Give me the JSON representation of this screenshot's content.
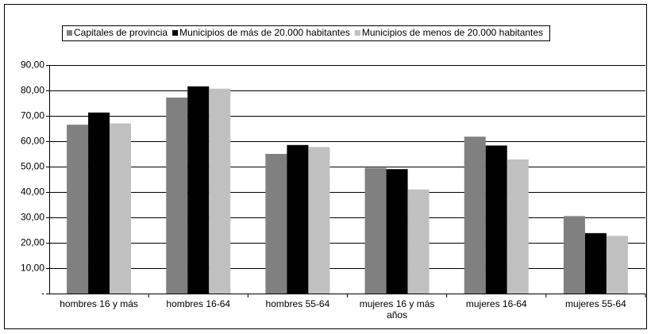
{
  "chart_data": {
    "type": "bar",
    "categories": [
      "hombres 16 y más",
      "hombres 16-64",
      "hombres 55-64",
      "mujeres 16 y más años",
      "mujeres 16-64",
      "mujeres 55-64"
    ],
    "series": [
      {
        "name": "Capitales de provincia",
        "color": "#808080",
        "values": [
          66.5,
          77.2,
          55.0,
          49.5,
          61.8,
          30.5
        ]
      },
      {
        "name": "Municipios de más de 20.000 habitantes",
        "color": "#000000",
        "values": [
          71.3,
          81.6,
          58.5,
          49.0,
          58.3,
          23.8
        ]
      },
      {
        "name": "Municipios de menos de 20.000 habitantes",
        "color": "#c0c0c0",
        "values": [
          67.0,
          80.7,
          57.7,
          41.0,
          52.8,
          22.7
        ]
      }
    ],
    "ylim": [
      0,
      90
    ],
    "yticks": [
      {
        "value": 0,
        "label": "-"
      },
      {
        "value": 10,
        "label": "10,00"
      },
      {
        "value": 20,
        "label": "20,00"
      },
      {
        "value": 30,
        "label": "30,00"
      },
      {
        "value": 40,
        "label": "40,00"
      },
      {
        "value": 50,
        "label": "50,00"
      },
      {
        "value": 60,
        "label": "60,00"
      },
      {
        "value": 70,
        "label": "70,00"
      },
      {
        "value": 80,
        "label": "80,00"
      },
      {
        "value": 90,
        "label": "90,00"
      }
    ],
    "grid": true,
    "legend": "top"
  }
}
